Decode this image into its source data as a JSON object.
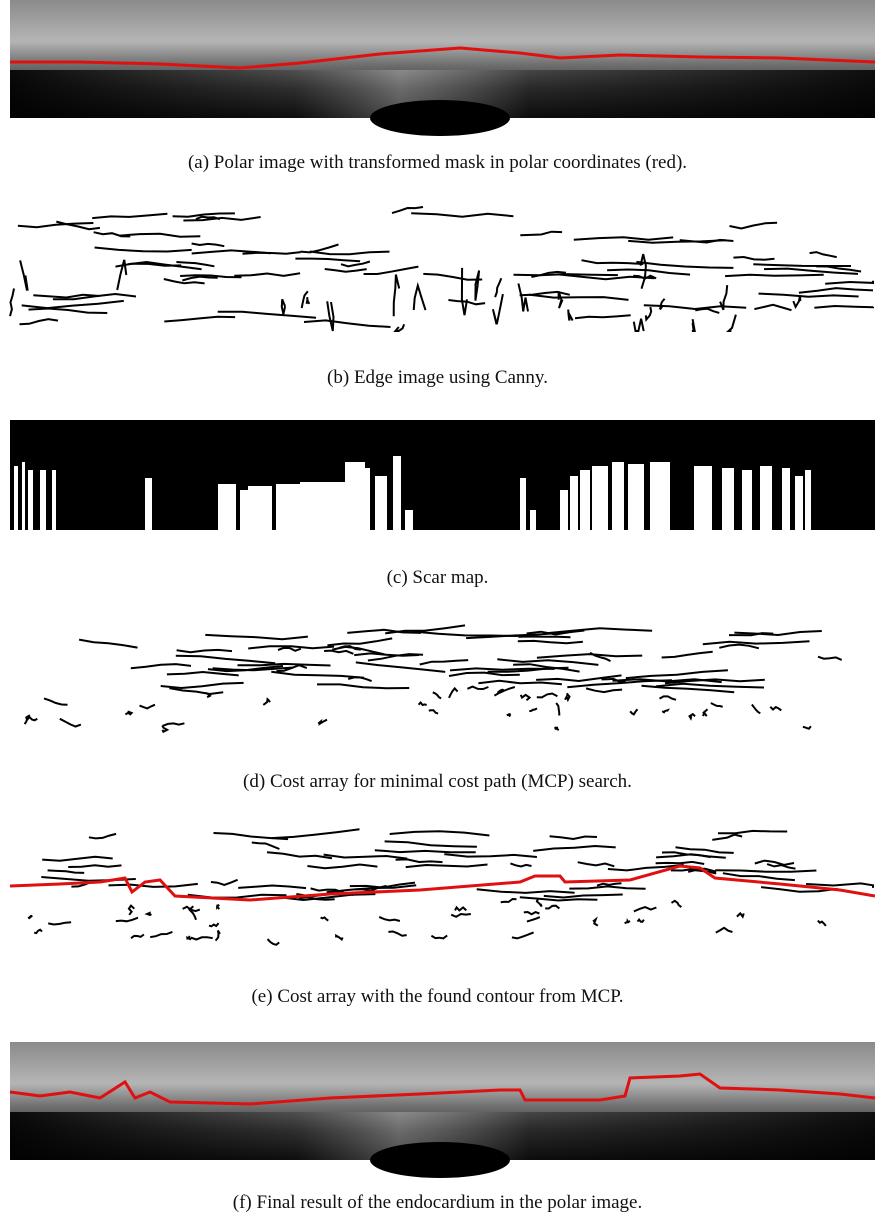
{
  "panels": [
    {
      "label": "(a)",
      "caption": "Polar image with transformed mask in polar coordinates (red)."
    },
    {
      "label": "(b)",
      "caption": "Edge image using Canny."
    },
    {
      "label": "(c)",
      "caption": "Scar map."
    },
    {
      "label": "(d)",
      "caption": "Cost array for minimal cost path (MCP) search."
    },
    {
      "label": "(e)",
      "caption": "Cost array with the found contour from MCP."
    },
    {
      "label": "(f)",
      "caption": "Final result of the endocardium in the polar image."
    }
  ]
}
